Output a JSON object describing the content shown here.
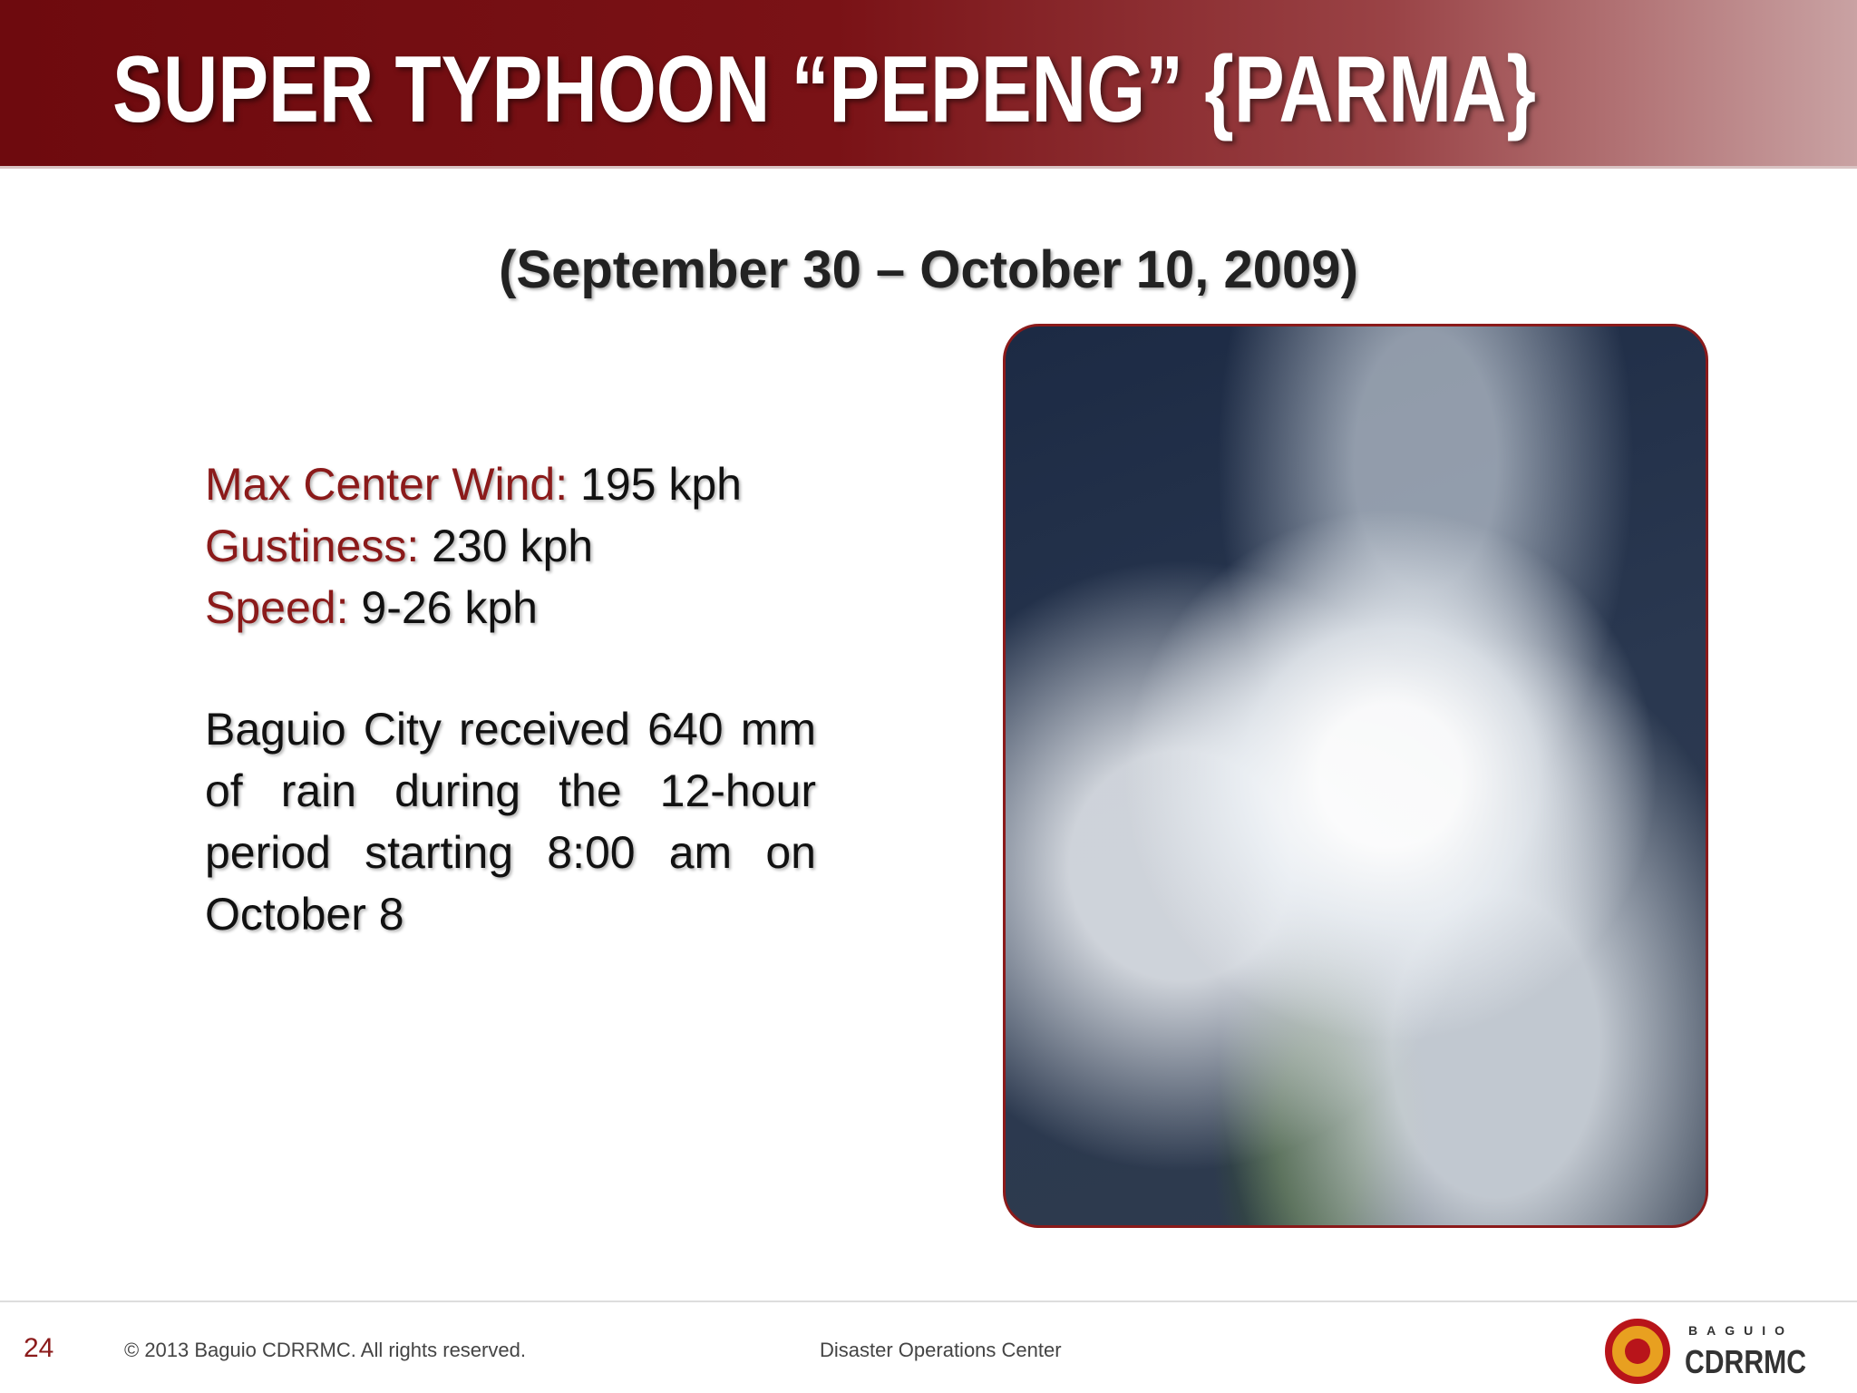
{
  "header": {
    "title": "SUPER TYPHOON “PEPENG” {PARMA}"
  },
  "subtitle": "(September 30 – October 10, 2009)",
  "stats": [
    {
      "label": "Max Center Wind:",
      "value": "195 kph"
    },
    {
      "label": "Gustiness:",
      "value": "230 kph"
    },
    {
      "label": "Speed:",
      "value": "9-26 kph"
    }
  ],
  "paragraph": "Baguio City received 640 mm of rain during the 12-hour period starting 8:00 am on October 8",
  "footer": {
    "page_number": "24",
    "copyright": "© 2013 Baguio CDRRMC. All rights reserved.",
    "center": "Disaster Operations Center",
    "logo_top": "BAGUIO",
    "logo_bottom": "CDRRMC"
  }
}
